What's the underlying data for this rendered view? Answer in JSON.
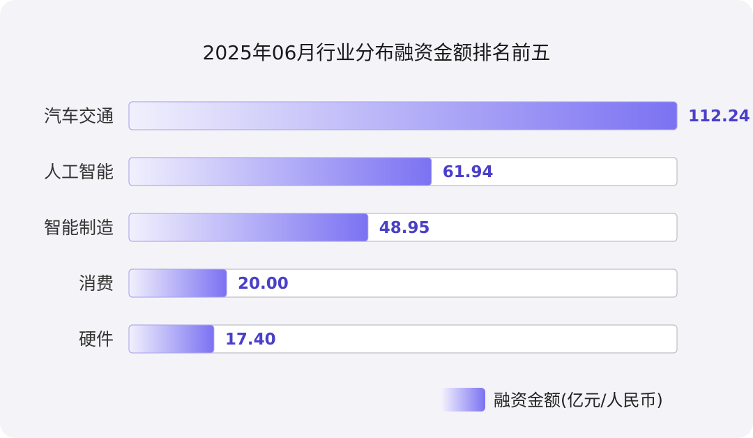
{
  "chart_data": {
    "type": "bar",
    "orientation": "horizontal",
    "title": "2025年06月行业分布融资金额排名前五",
    "categories": [
      "汽车交通",
      "人工智能",
      "智能制造",
      "消费",
      "硬件"
    ],
    "series": [
      {
        "name": "融资金额(亿元/人民币)",
        "values": [
          112.24,
          61.94,
          48.95,
          20.0,
          17.4
        ],
        "labels": [
          "112.24",
          "61.94",
          "48.95",
          "20.00",
          "17.40"
        ]
      }
    ],
    "xlim": [
      0,
      112.24
    ],
    "grid": false,
    "legend_position": "bottom-right",
    "colors": {
      "bar_start": "#f1f0fd",
      "bar_end": "#7b72f2",
      "value_text": "#4a3fc8",
      "track_border": "#bdbdc6",
      "background": "#f4f4f8"
    }
  }
}
